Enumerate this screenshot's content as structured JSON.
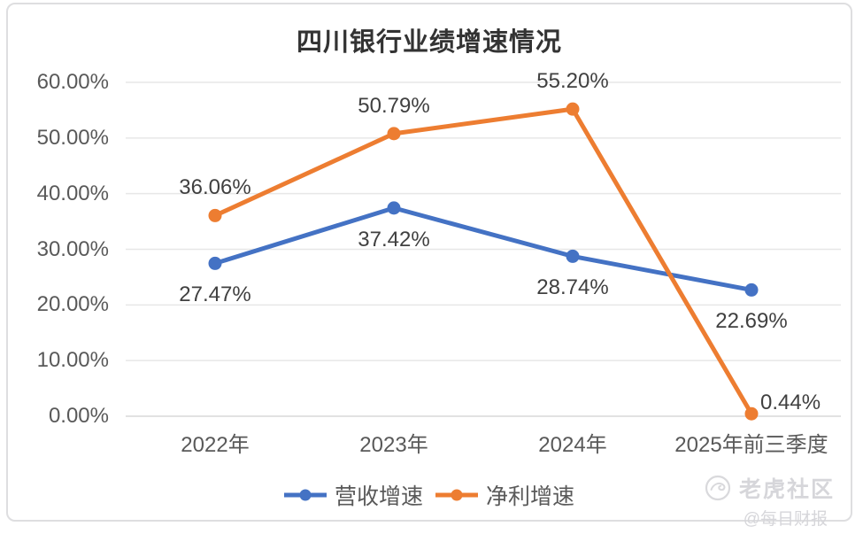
{
  "title": "四川银行业绩增速情况",
  "chart_data": {
    "type": "line",
    "title": "四川银行业绩增速情况",
    "categories": [
      "2022年",
      "2023年",
      "2024年",
      "2025年前三季度"
    ],
    "series": [
      {
        "name": "营收增速",
        "color": "#4472C4",
        "values": [
          27.47,
          37.42,
          28.74,
          22.69
        ],
        "labels": [
          "27.47%",
          "37.42%",
          "28.74%",
          "22.69%"
        ],
        "label_positions": [
          "below",
          "below",
          "below",
          "below"
        ]
      },
      {
        "name": "净利增速",
        "color": "#ED7D31",
        "values": [
          36.06,
          50.79,
          55.2,
          0.44
        ],
        "labels": [
          "36.06%",
          "50.79%",
          "55.20%",
          "0.44%"
        ],
        "label_positions": [
          "above",
          "above",
          "above",
          "right"
        ]
      }
    ],
    "ylim": [
      0,
      60
    ],
    "ytick_step": 10,
    "yticks": [
      "0.00%",
      "10.00%",
      "20.00%",
      "30.00%",
      "40.00%",
      "50.00%",
      "60.00%"
    ],
    "grid": true,
    "legend_position": "bottom"
  },
  "watermark": {
    "icon": "tiger-logo",
    "community": "老虎社区",
    "handle": "@每日财报"
  },
  "colors": {
    "grid": "#E7E7E7",
    "axis_line": "#D9D9D9",
    "axis_text": "#595959",
    "data_label_text": "#404040",
    "title_text": "#333333",
    "watermark": "#D6D6DA",
    "border": "#DEDEE0"
  }
}
